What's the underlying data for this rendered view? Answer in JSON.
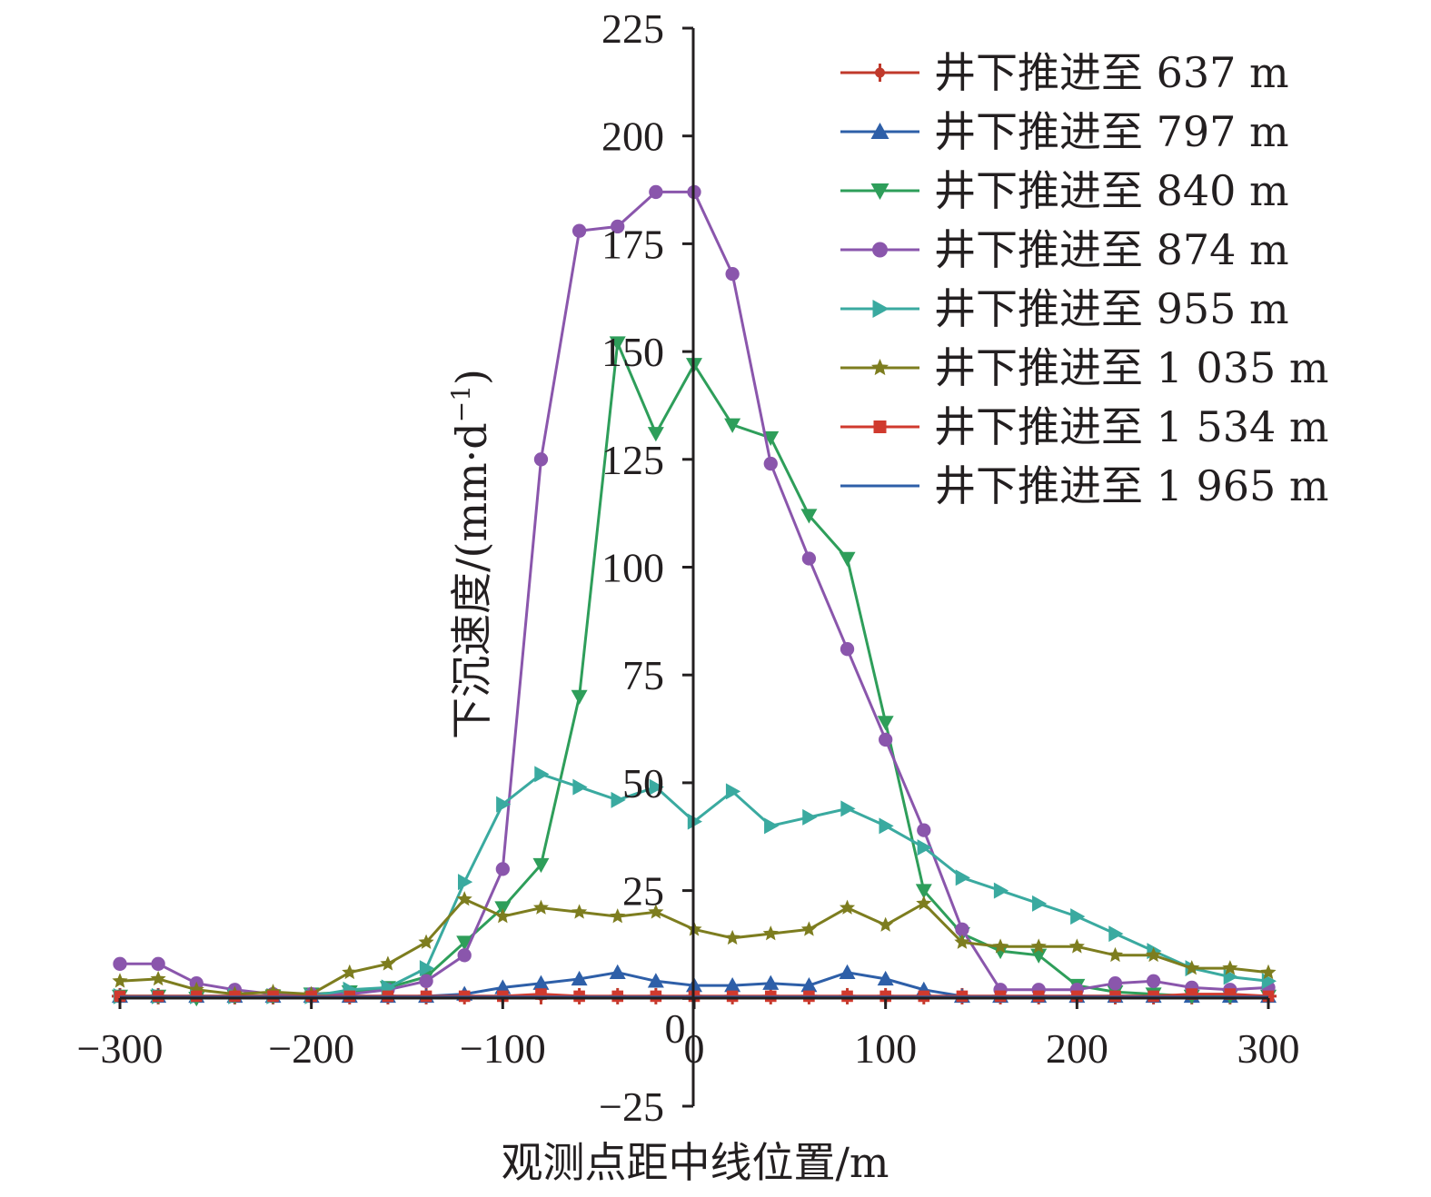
{
  "chart_data": {
    "type": "line",
    "xlabel": "观测点距中线位置/m",
    "ylabel_main": "下沉速度/(mm·d",
    "ylabel_sup": "−1",
    "ylabel_close": ")",
    "xlim": [
      -300,
      300
    ],
    "ylim": [
      -25,
      225
    ],
    "xticks": [
      -300,
      -200,
      -100,
      0,
      100,
      200,
      300
    ],
    "xtick_labels": [
      "−300",
      "−200",
      "−100",
      "0",
      "100",
      "200",
      "300"
    ],
    "yticks": [
      -25,
      0,
      25,
      50,
      75,
      100,
      125,
      150,
      175,
      200,
      225
    ],
    "ytick_labels": [
      "−25",
      "",
      "25",
      "50",
      "75",
      "100",
      "125",
      "150",
      "175",
      "200",
      "225"
    ],
    "grid": false,
    "legend_position": "top-right",
    "x": [
      -300,
      -280,
      -260,
      -240,
      -220,
      -200,
      -180,
      -160,
      -140,
      -120,
      -100,
      -80,
      -60,
      -40,
      -20,
      0,
      20,
      40,
      60,
      80,
      100,
      120,
      140,
      160,
      180,
      200,
      220,
      240,
      260,
      280,
      300
    ],
    "series": [
      {
        "name": "井下推进至 637 m",
        "color": "#c0392b",
        "marker": "plus",
        "values": [
          0.5,
          0.5,
          0.5,
          0.5,
          0.5,
          0.5,
          0.5,
          0.5,
          0.5,
          0.5,
          0.5,
          0.5,
          0.5,
          0.5,
          0.5,
          0.5,
          0.5,
          0.5,
          0.5,
          0.5,
          0.5,
          0.5,
          0.5,
          0.5,
          0.5,
          0.5,
          0.5,
          0.5,
          0.5,
          0.5,
          0.5
        ]
      },
      {
        "name": "井下推进至 797 m",
        "color": "#2e5fa8",
        "marker": "triangle-up",
        "values": [
          0.5,
          0.5,
          0.5,
          0.5,
          0.5,
          0.5,
          0.5,
          0.5,
          0.5,
          1,
          2.5,
          3.5,
          4.5,
          6,
          4,
          3,
          3,
          3.5,
          3,
          6,
          4.5,
          2,
          0.5,
          0.5,
          0.5,
          0.5,
          0.5,
          0.5,
          0.5,
          0.5,
          0.5
        ]
      },
      {
        "name": "井下推进至 840 m",
        "color": "#2e9e5a",
        "marker": "triangle-down",
        "values": [
          0.5,
          0.5,
          0,
          0.5,
          0.5,
          1,
          1.5,
          2.5,
          5,
          13,
          21,
          31,
          70,
          152,
          131,
          147,
          133,
          130,
          112,
          102,
          64,
          25,
          15,
          11,
          10,
          3,
          1.5,
          1,
          0.5,
          0.5,
          0.5
        ]
      },
      {
        "name": "井下推进至 874 m",
        "color": "#8a56ac",
        "marker": "circle",
        "values": [
          8,
          8,
          3.5,
          2,
          1,
          1,
          1,
          2,
          4,
          10,
          30,
          125,
          178,
          179,
          187,
          187,
          168,
          124,
          102,
          81,
          60,
          39,
          16,
          2,
          2,
          2,
          3.5,
          4,
          2.5,
          2,
          2.5
        ]
      },
      {
        "name": "井下推进至 955 m",
        "color": "#3aaaa0",
        "marker": "triangle-right",
        "values": [
          0.5,
          0.5,
          0.5,
          0.5,
          0.5,
          0.5,
          2,
          2.5,
          7,
          27,
          45,
          52,
          49,
          46,
          49,
          41,
          48,
          40,
          42,
          44,
          40,
          35,
          28,
          25,
          22,
          19,
          15,
          11,
          7,
          5,
          4
        ]
      },
      {
        "name": "井下推进至 1 035 m",
        "color": "#7d7d1f",
        "marker": "star",
        "values": [
          4,
          4.5,
          2,
          1,
          1.5,
          1,
          6,
          8,
          13,
          23,
          19,
          21,
          20,
          19,
          20,
          16,
          14,
          15,
          16,
          21,
          17,
          22,
          13,
          12,
          12,
          12,
          10,
          10,
          7,
          7,
          6
        ]
      },
      {
        "name": "井下推进至 1 534 m",
        "color": "#d03a2e",
        "marker": "square",
        "values": [
          0.5,
          0.5,
          0.5,
          0.5,
          0.5,
          0.5,
          0.5,
          0.5,
          0.5,
          0.5,
          0.5,
          1,
          0.5,
          0.5,
          0.5,
          0.5,
          0.5,
          0.5,
          0.5,
          0.5,
          0.5,
          0.5,
          0.5,
          0.5,
          0.5,
          0.5,
          0.5,
          0.5,
          1,
          1,
          0.5
        ]
      },
      {
        "name": "井下推进至 1 965 m",
        "color": "#2e5fa8",
        "marker": "none",
        "values": [
          0.3,
          0.3,
          0.3,
          0.3,
          0.3,
          0.3,
          0.3,
          0.3,
          0.3,
          0.3,
          0.3,
          0.3,
          0.3,
          0.3,
          0.3,
          0.3,
          0.3,
          0.3,
          0.3,
          0.3,
          0.3,
          0.3,
          0.3,
          0.3,
          0.3,
          0.3,
          0.3,
          0.3,
          0.3,
          0.3,
          0.3
        ]
      }
    ]
  }
}
